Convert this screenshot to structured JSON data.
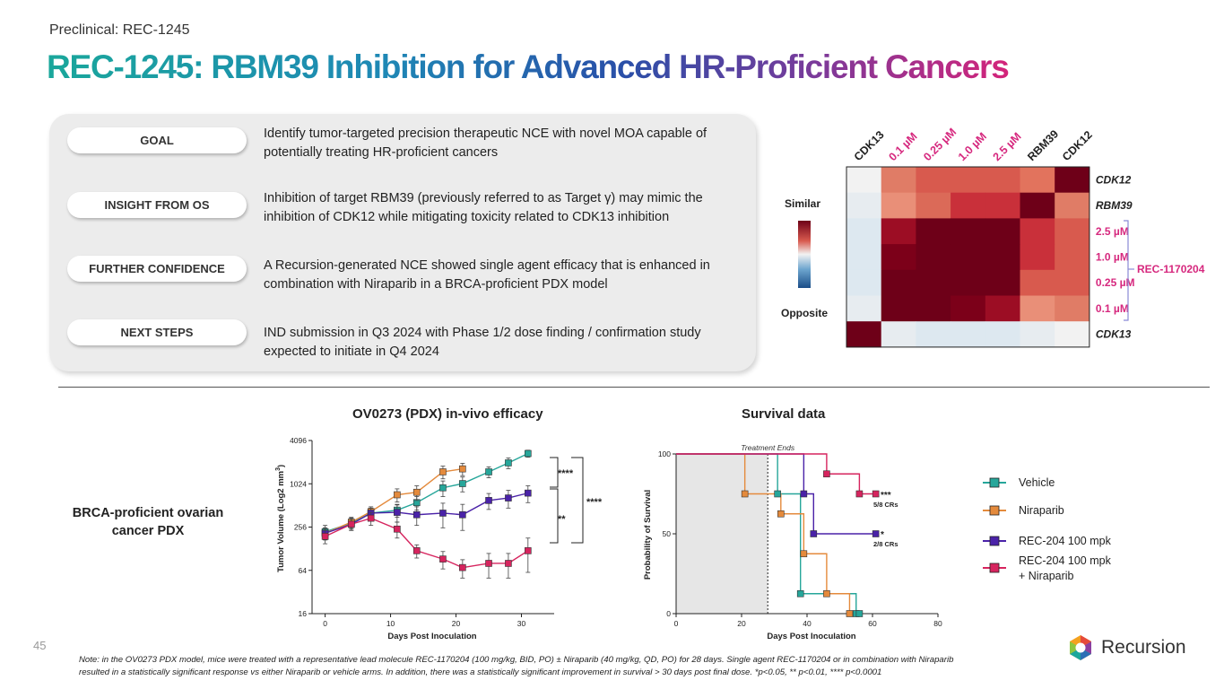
{
  "header": {
    "eyebrow": "Preclinical: REC-1245",
    "title": "REC-1245: RBM39 Inhibition for Advanced HR-Proficient Cancers"
  },
  "panel": {
    "items": [
      {
        "label": "GOAL",
        "text": "Identify tumor-targeted precision therapeutic NCE with novel MOA capable of potentially treating HR-proficient cancers"
      },
      {
        "label": "INSIGHT FROM OS",
        "text": "Inhibition of target RBM39 (previously referred to as Target γ) may mimic the inhibition of CDK12 while mitigating toxicity related to CDK13 inhibition"
      },
      {
        "label": "FURTHER CONFIDENCE",
        "text": "A Recursion-generated NCE showed single agent efficacy that is enhanced in combination with Niraparib in a BRCA-proficient PDX model"
      },
      {
        "label": "NEXT STEPS",
        "text": "IND submission in Q3 2024 with Phase 1/2 dose finding / confirmation study expected to initiate in Q4 2024"
      }
    ]
  },
  "heatmap": {
    "col_labels": [
      "CDK13",
      "0.1 µM",
      "0.25 µM",
      "1.0 µM",
      "2.5 µM",
      "RBM39",
      "CDK12"
    ],
    "row_labels": [
      "CDK12",
      "RBM39",
      "2.5 µM",
      "1.0 µM",
      "0.25 µM",
      "0.1 µM",
      "CDK13"
    ],
    "label_colors": {
      "default": "#222222",
      "dose": "#d6287e"
    },
    "scale_top": "Similar",
    "scale_bottom": "Opposite",
    "group_label": "REC-1170204",
    "colors": [
      [
        "#f2f2f2",
        "#e07c66",
        "#d85a4e",
        "#d85a4e",
        "#d85a4e",
        "#e2735d",
        "#6e0018"
      ],
      [
        "#e7ecf0",
        "#e98f78",
        "#db6a58",
        "#c9303a",
        "#c9303a",
        "#6e0018",
        "#e07c66"
      ],
      [
        "#dde8f0",
        "#9c0d24",
        "#6e0018",
        "#6e0018",
        "#6e0018",
        "#c9303a",
        "#d85a4e"
      ],
      [
        "#dde8f0",
        "#7c0019",
        "#6e0018",
        "#6e0018",
        "#6e0018",
        "#c9303a",
        "#d85a4e"
      ],
      [
        "#dde8f0",
        "#6e0018",
        "#6e0018",
        "#6e0018",
        "#6e0018",
        "#d85a4e",
        "#d85a4e"
      ],
      [
        "#e7ecf0",
        "#6e0018",
        "#6e0018",
        "#7c0019",
        "#9c0d24",
        "#e98f78",
        "#e07c66"
      ],
      [
        "#6e0018",
        "#e7ecf0",
        "#dde8f0",
        "#dde8f0",
        "#dde8f0",
        "#e7ecf0",
        "#f2f2f2"
      ]
    ]
  },
  "pdx_label": "BRCA-proficient ovarian cancer PDX",
  "chart_data": [
    {
      "type": "line",
      "title": "OV0273 (PDX) in-vivo efficacy",
      "xlabel": "Days Post Inoculation",
      "ylabel": "Tumor Volume (Log2 mm³)",
      "ylabel_main": "Tumor Volume  (Log2 mm",
      "ylabel_sup": "3",
      "ylabel_close": ")",
      "x_ticks": [
        0,
        10,
        20,
        30
      ],
      "y_ticks": [
        16,
        64,
        256,
        1024,
        4096
      ],
      "xlim": [
        -2,
        35
      ],
      "ylim": [
        16,
        4096
      ],
      "log_scale_y": true,
      "series": [
        {
          "name": "Vehicle",
          "color": "#26a69a",
          "x": [
            0,
            4,
            7,
            11,
            14,
            18,
            21,
            25,
            28,
            31
          ],
          "y": [
            220,
            290,
            400,
            440,
            560,
            900,
            1030,
            1500,
            2000,
            2700
          ],
          "err": [
            50,
            50,
            70,
            90,
            120,
            220,
            240,
            260,
            340,
            300
          ]
        },
        {
          "name": "Niraparib",
          "color": "#e48a3c",
          "x": [
            0,
            4,
            7,
            11,
            14,
            18,
            21
          ],
          "y": [
            210,
            300,
            420,
            720,
            780,
            1500,
            1650
          ],
          "err": [
            40,
            50,
            70,
            150,
            180,
            300,
            320
          ]
        },
        {
          "name": "REC-204 100 mpk",
          "color": "#4a22a8",
          "x": [
            0,
            4,
            7,
            11,
            14,
            18,
            21,
            25,
            28,
            31
          ],
          "y": [
            210,
            280,
            400,
            410,
            380,
            400,
            380,
            600,
            650,
            760
          ],
          "err": [
            40,
            50,
            70,
            110,
            110,
            150,
            150,
            150,
            180,
            200
          ]
        },
        {
          "name": "REC-204 100 mpk + Niraparib",
          "color": "#d6245e",
          "x": [
            0,
            4,
            7,
            11,
            14,
            18,
            21,
            25,
            28,
            31
          ],
          "y": [
            190,
            280,
            340,
            240,
            120,
            92,
            70,
            80,
            80,
            120
          ],
          "err": [
            40,
            50,
            70,
            60,
            25,
            25,
            20,
            30,
            30,
            60
          ]
        }
      ],
      "annotations": [
        "****",
        "**",
        "****"
      ]
    },
    {
      "type": "line",
      "title": "Survival data",
      "xlabel": "Days Post Inoculation",
      "ylabel": "Probability of Survival",
      "x_ticks": [
        0,
        20,
        40,
        60,
        80
      ],
      "y_ticks": [
        0,
        50,
        100
      ],
      "xlim": [
        0,
        80
      ],
      "ylim": [
        0,
        100
      ],
      "treatment_end_day": 28,
      "treatment_label": "Treatment Ends",
      "series": [
        {
          "name": "Vehicle",
          "color": "#26a69a",
          "steps": [
            [
              0,
              100
            ],
            [
              31,
              100
            ],
            [
              31,
              75
            ],
            [
              38,
              75
            ],
            [
              38,
              12.5
            ],
            [
              55,
              12.5
            ],
            [
              55,
              0
            ],
            [
              56,
              0
            ]
          ]
        },
        {
          "name": "Niraparib",
          "color": "#e48a3c",
          "steps": [
            [
              0,
              100
            ],
            [
              21,
              100
            ],
            [
              21,
              75
            ],
            [
              32,
              75
            ],
            [
              32,
              62.5
            ],
            [
              39,
              62.5
            ],
            [
              39,
              37.5
            ],
            [
              46,
              37.5
            ],
            [
              46,
              12.5
            ],
            [
              53,
              12.5
            ],
            [
              53,
              0
            ]
          ]
        },
        {
          "name": "REC-204 100 mpk",
          "color": "#4a22a8",
          "steps": [
            [
              0,
              100
            ],
            [
              39,
              100
            ],
            [
              39,
              75
            ],
            [
              42,
              75
            ],
            [
              42,
              50
            ],
            [
              61,
              50
            ]
          ]
        },
        {
          "name": "REC-204 100 mpk + Niraparib",
          "color": "#d6245e",
          "steps": [
            [
              0,
              100
            ],
            [
              46,
              100
            ],
            [
              46,
              87.5
            ],
            [
              56,
              87.5
            ],
            [
              56,
              75
            ],
            [
              61,
              75
            ]
          ]
        }
      ],
      "end_labels": [
        {
          "sig": "***",
          "crs": "5/8 CRs"
        },
        {
          "sig": "*",
          "crs": "2/8 CRs"
        }
      ]
    }
  ],
  "legend": [
    {
      "label": "Vehicle",
      "color": "#26a69a"
    },
    {
      "label": "Niraparib",
      "color": "#e48a3c"
    },
    {
      "label": "REC-204 100 mpk",
      "color": "#4a22a8"
    },
    {
      "label": "REC-204 100 mpk + Niraparib",
      "color": "#d6245e"
    }
  ],
  "footer": {
    "page_number": "45",
    "note": "Note: in the OV0273 PDX model, mice were treated with a representative lead molecule REC-1170204 (100 mg/kg, BID, PO) ± Niraparib (40 mg/kg, QD, PO) for 28 days. Single agent REC-1170204 or in combination with Niraparib resulted in a statistically significant response vs either Niraparib or vehicle arms. In addition, there was a statistically significant improvement in survival > 30 days post final dose. *p<0.05, ** p<0.01, **** p<0.0001",
    "logo_text": "Recursion"
  }
}
